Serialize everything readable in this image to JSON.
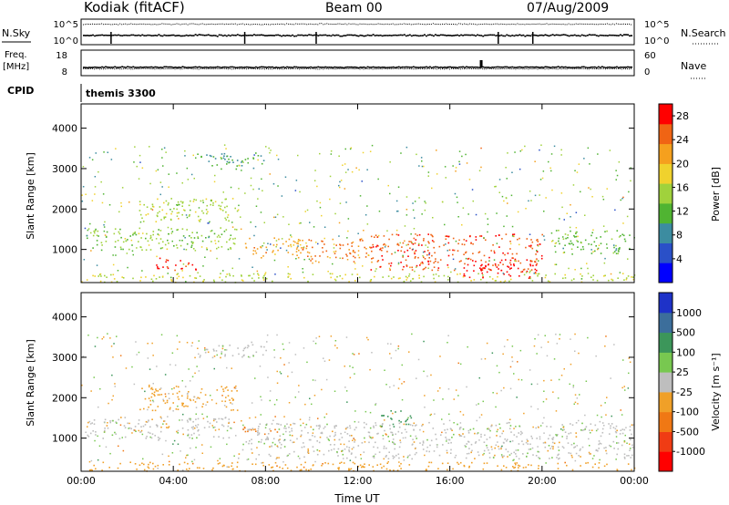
{
  "header": {
    "station": "Kodiak (fitACF)",
    "beam": "Beam 00",
    "date": "07/Aug/2009"
  },
  "strip_panels": {
    "nsky_label": "N.Sky",
    "nsky_ticks": [
      "10^5",
      "10^0"
    ],
    "nsearch_label": "N.Search",
    "nsearch_ticks": [
      "10^5",
      "10^0"
    ],
    "freq_label": "Freq.",
    "freq_unit": "[MHz]",
    "freq_ticks": [
      "18",
      "8"
    ],
    "nave_label": "Nave",
    "nave_ticks": [
      "60",
      "0"
    ],
    "cpid_label": "CPID",
    "cpid_value": "themis 3300"
  },
  "chart_data": [
    {
      "type": "heatmap",
      "title": "",
      "xlabel": "",
      "ylabel": "Slant Range [km]",
      "x_ticks": [
        "00:00",
        "04:00",
        "08:00",
        "12:00",
        "16:00",
        "20:00",
        "00:00"
      ],
      "xlim_hours": [
        0,
        24
      ],
      "y_ticks": [
        1000,
        2000,
        3000,
        4000
      ],
      "ylim": [
        180,
        4600
      ],
      "colorbar": {
        "label": "Power [dB]",
        "ticks": [
          "28",
          "24",
          "20",
          "16",
          "12",
          "8",
          "4"
        ],
        "range": [
          0,
          30
        ],
        "colors": [
          "#0000ff",
          "#2a50c8",
          "#3c8ca0",
          "#50b432",
          "#a0d23c",
          "#f0d22d",
          "#f5a01e",
          "#f06414",
          "#ff0000"
        ]
      },
      "regions": [
        {
          "t": [
            0.2,
            6.8
          ],
          "r": [
            1000,
            1550
          ],
          "level": 14
        },
        {
          "t": [
            2.5,
            6.8
          ],
          "r": [
            1700,
            2300
          ],
          "level": 16
        },
        {
          "t": [
            7,
            9.5
          ],
          "r": [
            800,
            1300
          ],
          "level": 22
        },
        {
          "t": [
            9.5,
            12.5
          ],
          "r": [
            700,
            1300
          ],
          "level": 24
        },
        {
          "t": [
            12.5,
            20
          ],
          "r": [
            500,
            1400
          ],
          "level": 26
        },
        {
          "t": [
            16.5,
            20
          ],
          "r": [
            300,
            800
          ],
          "level": 29
        },
        {
          "t": [
            3,
            5
          ],
          "r": [
            500,
            800
          ],
          "level": 28
        },
        {
          "t": [
            20.5,
            23.8
          ],
          "r": [
            900,
            1500
          ],
          "level": 12
        },
        {
          "t": [
            5,
            8
          ],
          "r": [
            3000,
            3400
          ],
          "level": 10
        },
        {
          "t": [
            0,
            24
          ],
          "r": [
            200,
            420
          ],
          "level": 16
        }
      ]
    },
    {
      "type": "heatmap",
      "title": "",
      "xlabel": "Time UT",
      "ylabel": "Slant Range [km]",
      "x_ticks": [
        "00:00",
        "04:00",
        "08:00",
        "12:00",
        "16:00",
        "20:00",
        "00:00"
      ],
      "xlim_hours": [
        0,
        24
      ],
      "y_ticks": [
        1000,
        2000,
        3000,
        4000
      ],
      "ylim": [
        180,
        4600
      ],
      "colorbar": {
        "label": "Velocity [m s⁻¹]",
        "ticks": [
          "1000",
          "500",
          "100",
          "25",
          "-25",
          "-100",
          "-500",
          "-1000"
        ],
        "colors": [
          "#1e32c8",
          "#3c6e9b",
          "#3c965a",
          "#78c850",
          "#bebebe",
          "#f0a028",
          "#f07814",
          "#f03c14",
          "#ff0000"
        ]
      },
      "regions": [
        {
          "t": [
            0.2,
            6.8
          ],
          "r": [
            1000,
            1550
          ],
          "level": 0
        },
        {
          "t": [
            2.5,
            6.8
          ],
          "r": [
            1700,
            2300
          ],
          "level": -50
        },
        {
          "t": [
            6.8,
            24
          ],
          "r": [
            500,
            1400
          ],
          "level": 0
        },
        {
          "t": [
            7,
            8.5
          ],
          "r": [
            1100,
            1300
          ],
          "level": -200
        },
        {
          "t": [
            13,
            14.5
          ],
          "r": [
            1300,
            1700
          ],
          "level": 150
        },
        {
          "t": [
            5,
            8
          ],
          "r": [
            3000,
            3400
          ],
          "level": 0
        },
        {
          "t": [
            0,
            24
          ],
          "r": [
            200,
            420
          ],
          "level": -60
        }
      ]
    }
  ]
}
